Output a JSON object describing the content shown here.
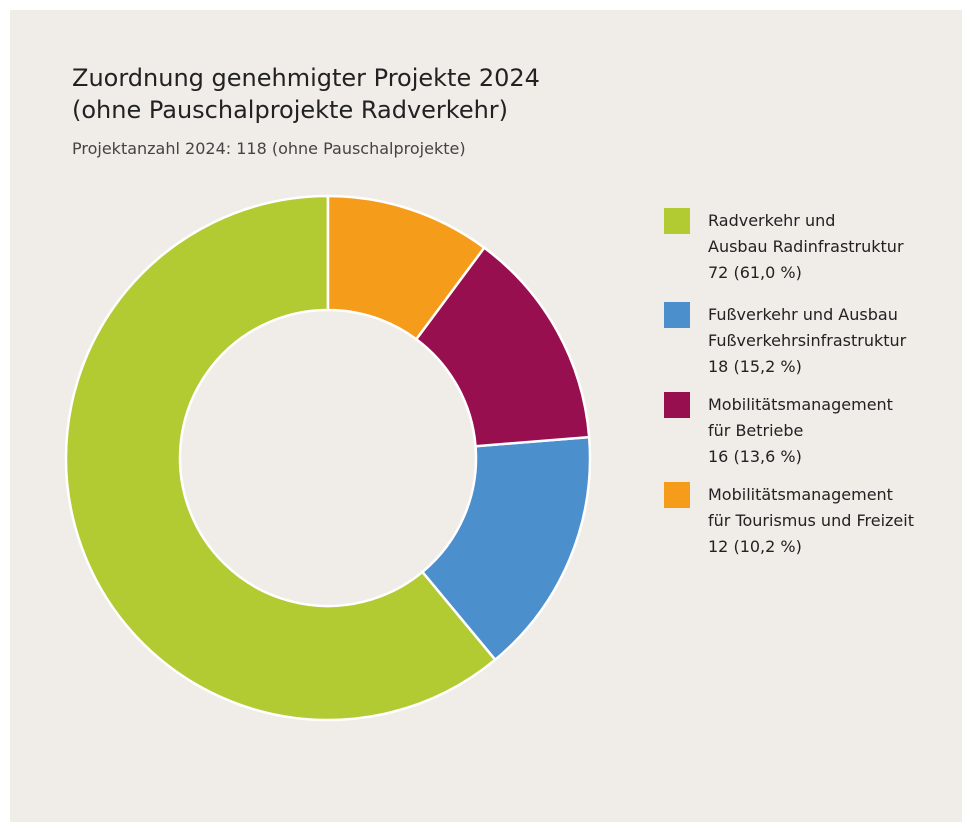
{
  "chart_data": {
    "type": "donut",
    "title": [
      "Zuordnung genehmigter Projekte 2024",
      "(ohne Pauschalprojekte Radverkehr)"
    ],
    "subtitle": "Projektanzahl 2024: 118 (ohne Pauschalprojekte)",
    "categories": [
      [
        "Radverkehr und",
        "Ausbau Radinfrastruktur"
      ],
      [
        "Fußverkehr und Ausbau",
        "Fußverkehrsinfrastruktur"
      ],
      [
        "Mobilitätsmanagement",
        "für Betriebe"
      ],
      [
        "Mobilitätsmanagement",
        "für Tourismus und Freizeit"
      ]
    ],
    "values": [
      72,
      18,
      16,
      12
    ],
    "value_labels": [
      "72 (61,0 %)",
      "18 (15,2 %)",
      "16 (13,6 %)",
      "12 (10,2 %)"
    ],
    "colors": [
      "#b2cb33",
      "#4c8fcd",
      "#980f50",
      "#f59c1a"
    ],
    "legend": "right"
  }
}
